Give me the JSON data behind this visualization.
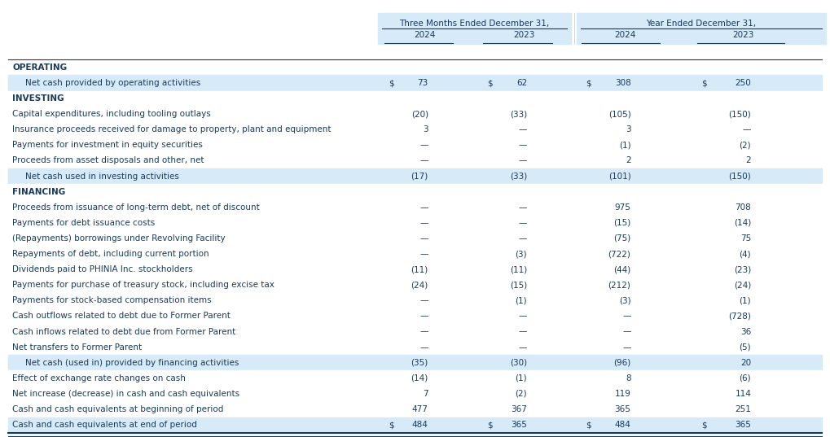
{
  "header_group1": "Three Months Ended December 31,",
  "header_group2": "Year Ended December 31,",
  "col_headers": [
    "2024",
    "2023",
    "2024",
    "2023"
  ],
  "rows": [
    {
      "label": "OPERATING",
      "bold": true,
      "indent": 0,
      "values": [
        "",
        "",
        "",
        ""
      ],
      "section_header": true,
      "bg": "white"
    },
    {
      "label": "Net cash provided by operating activities",
      "bold": false,
      "indent": 1,
      "values": [
        "$  73",
        "$  62",
        "$  308",
        "$  250"
      ],
      "bg": "light_blue",
      "dollar": true
    },
    {
      "label": "INVESTING",
      "bold": true,
      "indent": 0,
      "values": [
        "",
        "",
        "",
        ""
      ],
      "section_header": true,
      "bg": "white"
    },
    {
      "label": "Capital expenditures, including tooling outlays",
      "bold": false,
      "indent": 0,
      "values": [
        "(20)",
        "(33)",
        "(105)",
        "(150)"
      ],
      "bg": "white"
    },
    {
      "label": "Insurance proceeds received for damage to property, plant and equipment",
      "bold": false,
      "indent": 0,
      "values": [
        "3",
        "—",
        "3",
        "—"
      ],
      "bg": "white"
    },
    {
      "label": "Payments for investment in equity securities",
      "bold": false,
      "indent": 0,
      "values": [
        "—",
        "—",
        "(1)",
        "(2)"
      ],
      "bg": "white"
    },
    {
      "label": "Proceeds from asset disposals and other, net",
      "bold": false,
      "indent": 0,
      "values": [
        "—",
        "—",
        "2",
        "2"
      ],
      "bg": "white"
    },
    {
      "label": "Net cash used in investing activities",
      "bold": false,
      "indent": 1,
      "values": [
        "(17)",
        "(33)",
        "(101)",
        "(150)"
      ],
      "bg": "light_blue"
    },
    {
      "label": "FINANCING",
      "bold": true,
      "indent": 0,
      "values": [
        "",
        "",
        "",
        ""
      ],
      "section_header": true,
      "bg": "white"
    },
    {
      "label": "Proceeds from issuance of long-term debt, net of discount",
      "bold": false,
      "indent": 0,
      "values": [
        "—",
        "—",
        "975",
        "708"
      ],
      "bg": "white"
    },
    {
      "label": "Payments for debt issuance costs",
      "bold": false,
      "indent": 0,
      "values": [
        "—",
        "—",
        "(15)",
        "(14)"
      ],
      "bg": "white"
    },
    {
      "label": "(Repayments) borrowings under Revolving Facility",
      "bold": false,
      "indent": 0,
      "values": [
        "—",
        "—",
        "(75)",
        "75"
      ],
      "bg": "white"
    },
    {
      "label": "Repayments of debt, including current portion",
      "bold": false,
      "indent": 0,
      "values": [
        "—",
        "(3)",
        "(722)",
        "(4)"
      ],
      "bg": "white"
    },
    {
      "label": "Dividends paid to PHINIA Inc. stockholders",
      "bold": false,
      "indent": 0,
      "values": [
        "(11)",
        "(11)",
        "(44)",
        "(23)"
      ],
      "bg": "white"
    },
    {
      "label": "Payments for purchase of treasury stock, including excise tax",
      "bold": false,
      "indent": 0,
      "values": [
        "(24)",
        "(15)",
        "(212)",
        "(24)"
      ],
      "bg": "white"
    },
    {
      "label": "Payments for stock-based compensation items",
      "bold": false,
      "indent": 0,
      "values": [
        "—",
        "(1)",
        "(3)",
        "(1)"
      ],
      "bg": "white"
    },
    {
      "label": "Cash outflows related to debt due to Former Parent",
      "bold": false,
      "indent": 0,
      "values": [
        "—",
        "—",
        "—",
        "(728)"
      ],
      "bg": "white"
    },
    {
      "label": "Cash inflows related to debt due from Former Parent",
      "bold": false,
      "indent": 0,
      "values": [
        "—",
        "—",
        "—",
        "36"
      ],
      "bg": "white"
    },
    {
      "label": "Net transfers to Former Parent",
      "bold": false,
      "indent": 0,
      "values": [
        "—",
        "—",
        "—",
        "(5)"
      ],
      "bg": "white"
    },
    {
      "label": "Net cash (used in) provided by financing activities",
      "bold": false,
      "indent": 1,
      "values": [
        "(35)",
        "(30)",
        "(96)",
        "20"
      ],
      "bg": "light_blue"
    },
    {
      "label": "Effect of exchange rate changes on cash",
      "bold": false,
      "indent": 0,
      "values": [
        "(14)",
        "(1)",
        "8",
        "(6)"
      ],
      "bg": "white"
    },
    {
      "label": "Net increase (decrease) in cash and cash equivalents",
      "bold": false,
      "indent": 0,
      "values": [
        "7",
        "(2)",
        "119",
        "114"
      ],
      "bg": "white"
    },
    {
      "label": "Cash and cash equivalents at beginning of period",
      "bold": false,
      "indent": 0,
      "values": [
        "477",
        "367",
        "365",
        "251"
      ],
      "bg": "white"
    },
    {
      "label": "Cash and cash equivalents at end of period",
      "bold": false,
      "indent": 0,
      "values": [
        "$  484",
        "$  365",
        "$  484",
        "$  365"
      ],
      "bg": "light_blue",
      "dollar": true,
      "bottom_border": true
    }
  ],
  "light_blue": "#d6eaf8",
  "white": "#ffffff",
  "header_blue": "#d6eaf8",
  "text_color": "#1a3a5c",
  "border_color": "#1a3a5c",
  "font_size": 7.5,
  "header_font_size": 7.5
}
